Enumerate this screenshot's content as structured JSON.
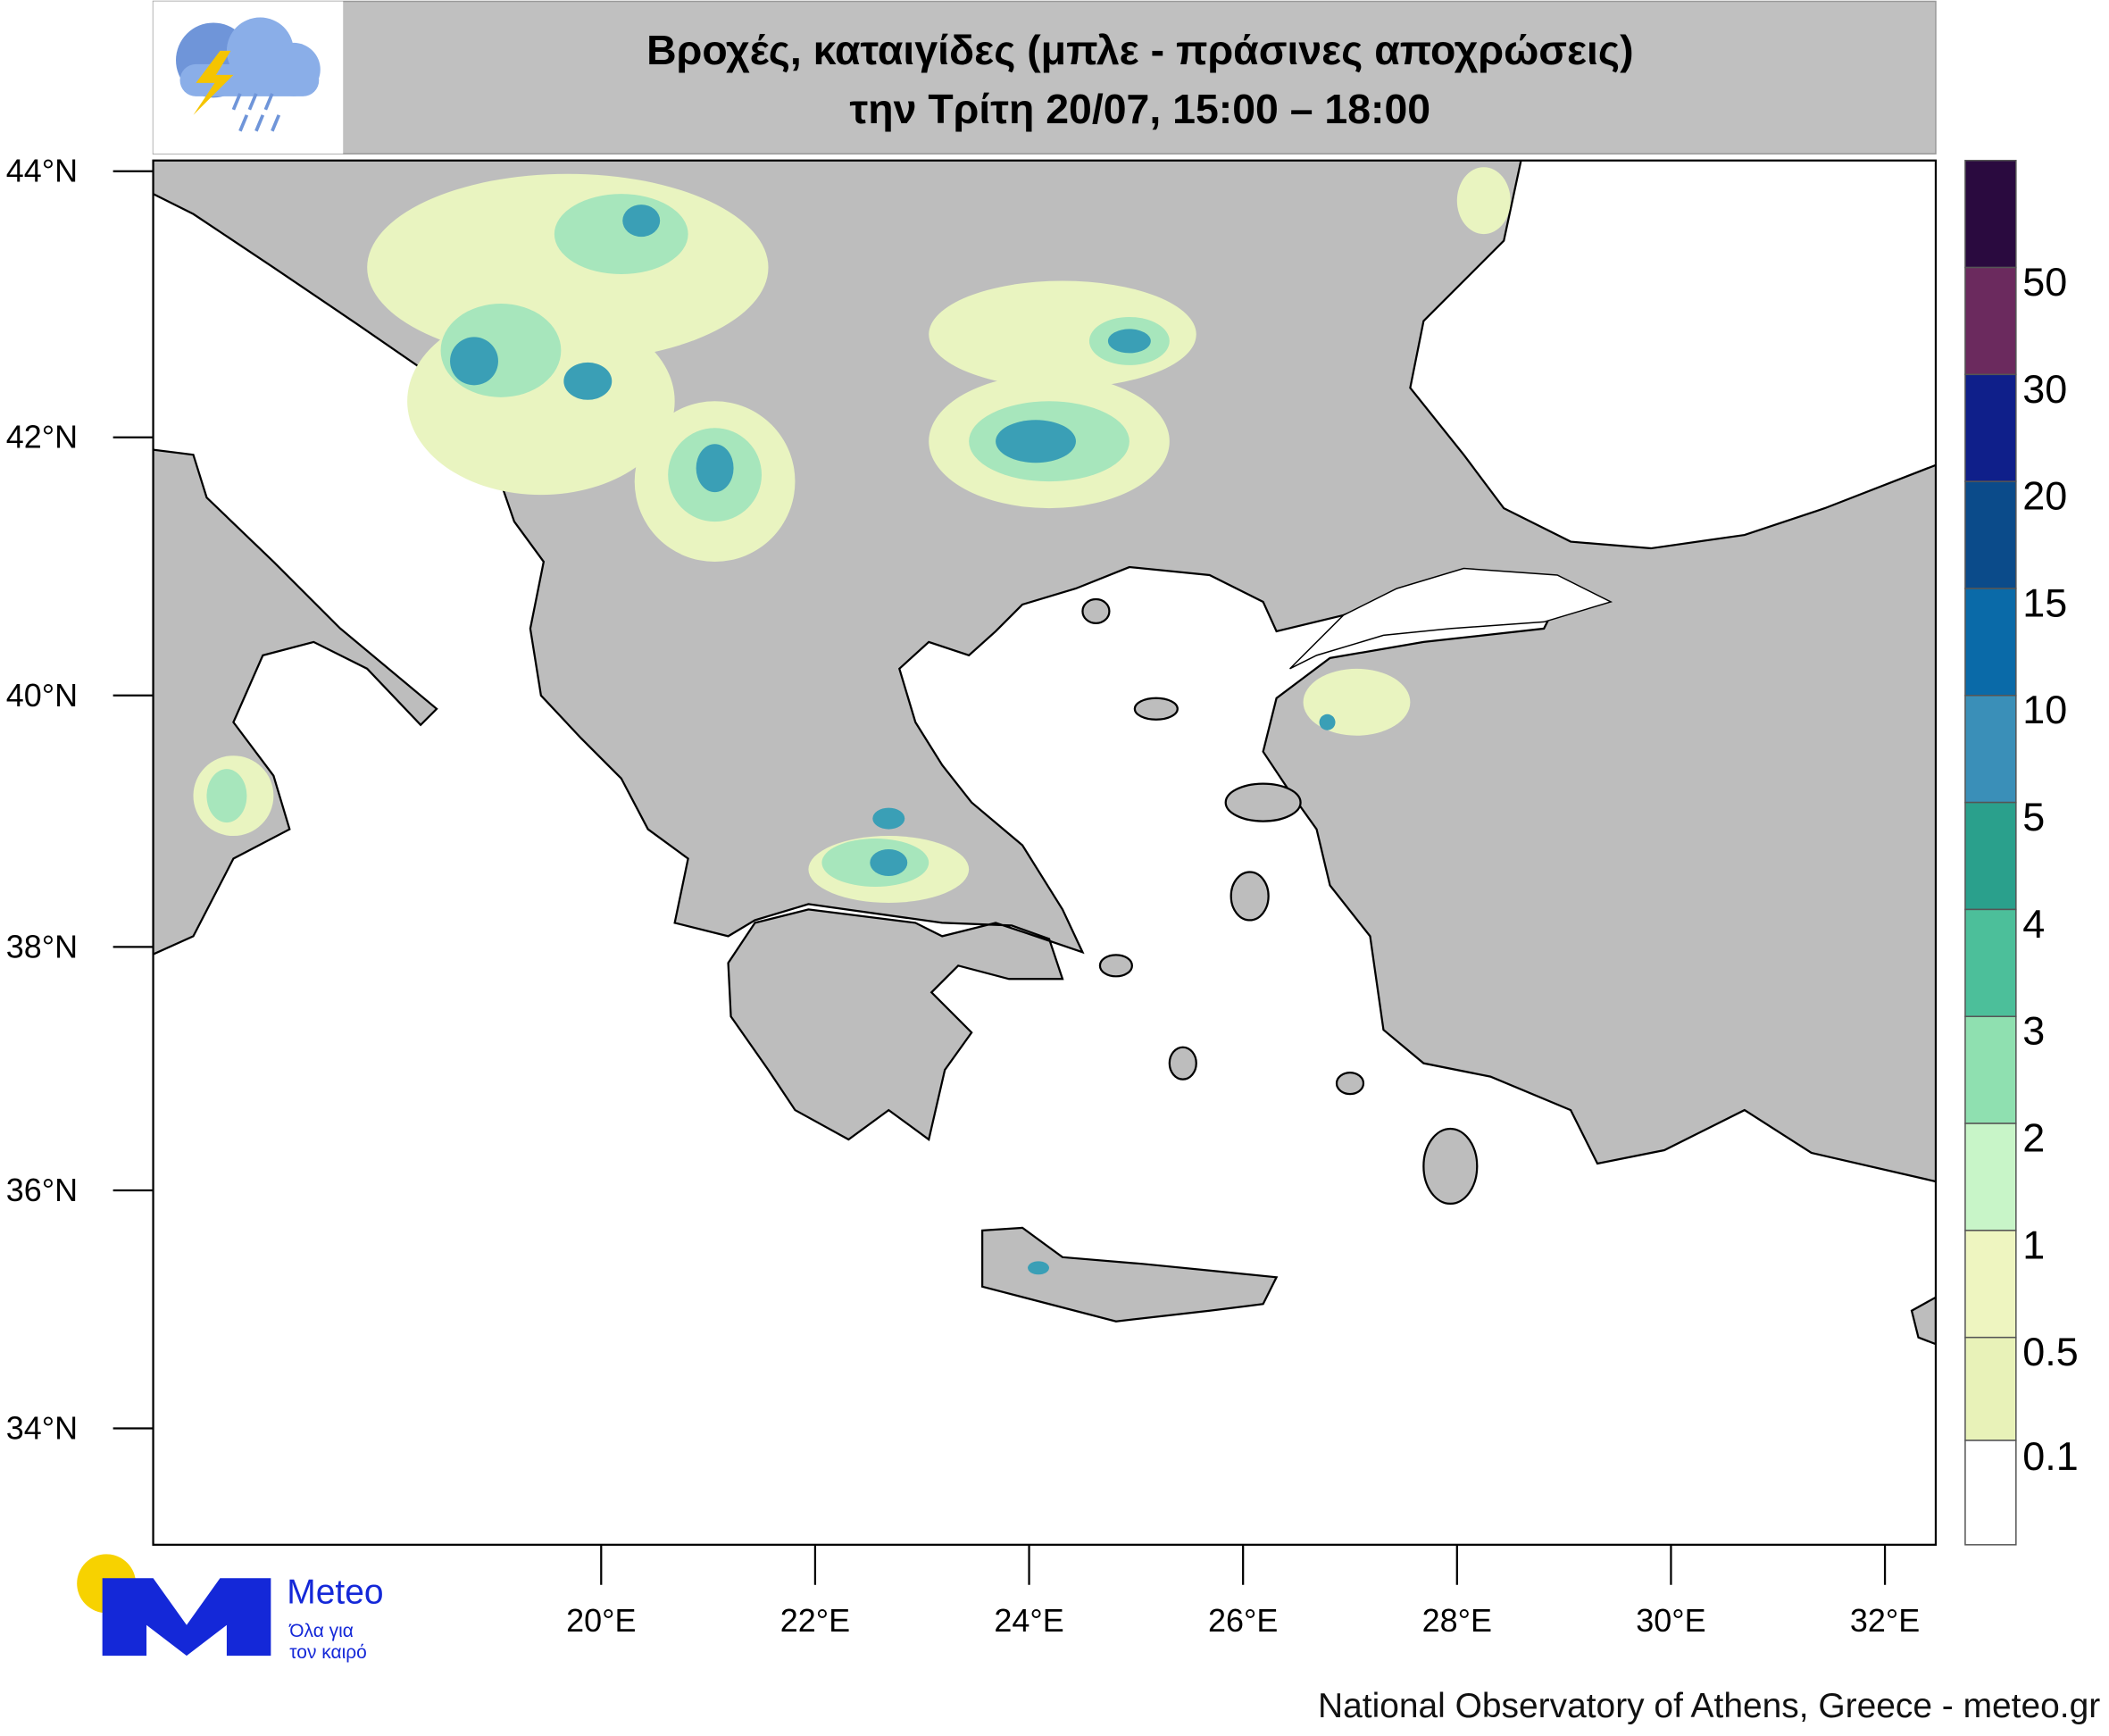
{
  "header": {
    "title_line1": "Βροχές, καταιγίδες (μπλε - πράσινες αποχρώσεις)",
    "title_line2": "την Τρίτη 20/07, 15:00 – 18:00"
  },
  "map": {
    "lat_labels": [
      "44°N",
      "42°N",
      "40°N",
      "38°N",
      "36°N",
      "34°N"
    ],
    "lon_labels": [
      "20°E",
      "22°E",
      "24°E",
      "26°E",
      "28°E",
      "30°E",
      "32°E"
    ]
  },
  "legend": {
    "labels": [
      "50",
      "30",
      "20",
      "15",
      "10",
      "5",
      "4",
      "3",
      "2",
      "1",
      "0.5",
      "0.1"
    ]
  },
  "logo": {
    "name": "Meteo",
    "tagline_line1": "Όλα για",
    "tagline_line2": "τον καιρό"
  },
  "footer": "National Observatory of Athens, Greece - meteo.gr"
}
